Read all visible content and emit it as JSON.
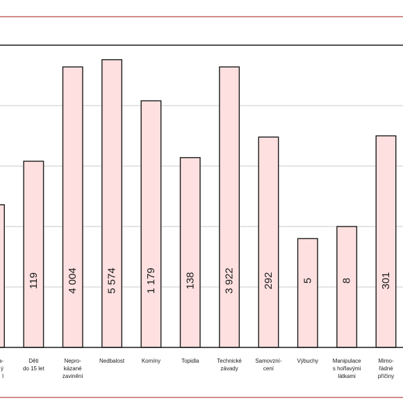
{
  "chart_data": {
    "type": "bar",
    "categories": [
      [
        "ra-",
        "ý",
        "l"
      ],
      [
        "Děti",
        "do 15 let"
      ],
      [
        "Nepro-",
        "kázané",
        "zavinění"
      ],
      [
        "Nedbalost"
      ],
      [
        "Komíny"
      ],
      [
        "Topidla"
      ],
      [
        "Technické",
        "závady"
      ],
      [
        "Samovzní-",
        "cení"
      ],
      [
        "Výbuchy"
      ],
      [
        "Manipulace",
        "s hořlavými",
        "látkami"
      ],
      [
        "Mimo-",
        "řádné",
        "příčiny"
      ]
    ],
    "value_labels": [
      "",
      "119",
      "4 004",
      "5 574",
      "1 179",
      "138",
      "3 922",
      "292",
      "5",
      "8",
      "301"
    ],
    "values": [
      59,
      77,
      116,
      119,
      102,
      78.5,
      116,
      87,
      45,
      50,
      87.5
    ],
    "ylim": [
      0,
      125
    ],
    "grid_lines": [
      25,
      50,
      75,
      100
    ],
    "grid": true,
    "title": "",
    "xlabel": "",
    "ylabel": ""
  }
}
